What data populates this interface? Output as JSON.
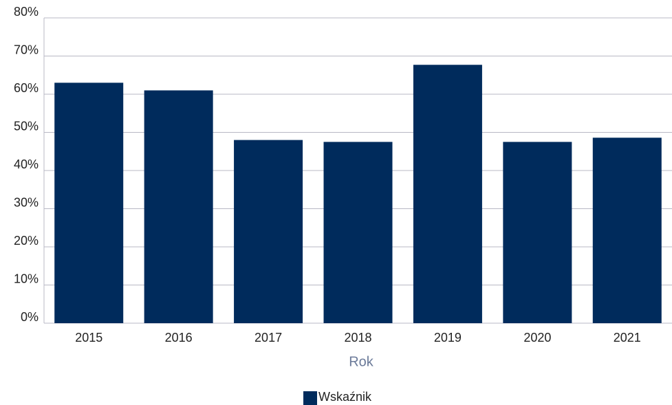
{
  "chart_data": {
    "type": "bar",
    "x_label": "Rok",
    "categories": [
      "2015",
      "2016",
      "2017",
      "2018",
      "2019",
      "2020",
      "2021"
    ],
    "series": [
      {
        "name": "Wskaźnik",
        "color": "#002b5c",
        "values": [
          63,
          61,
          48,
          47.5,
          67.7,
          47.5,
          48.6
        ]
      }
    ],
    "ylim": [
      0,
      80
    ],
    "yticks": [
      {
        "value": 0,
        "label": "0%"
      },
      {
        "value": 10,
        "label": "10%"
      },
      {
        "value": 20,
        "label": "20%"
      },
      {
        "value": 30,
        "label": "30%"
      },
      {
        "value": 40,
        "label": "40%"
      },
      {
        "value": 50,
        "label": "50%"
      },
      {
        "value": 60,
        "label": "60%"
      },
      {
        "value": 70,
        "label": "70%"
      },
      {
        "value": 80,
        "label": "80%"
      }
    ],
    "grid": true,
    "legend": "bottom"
  }
}
